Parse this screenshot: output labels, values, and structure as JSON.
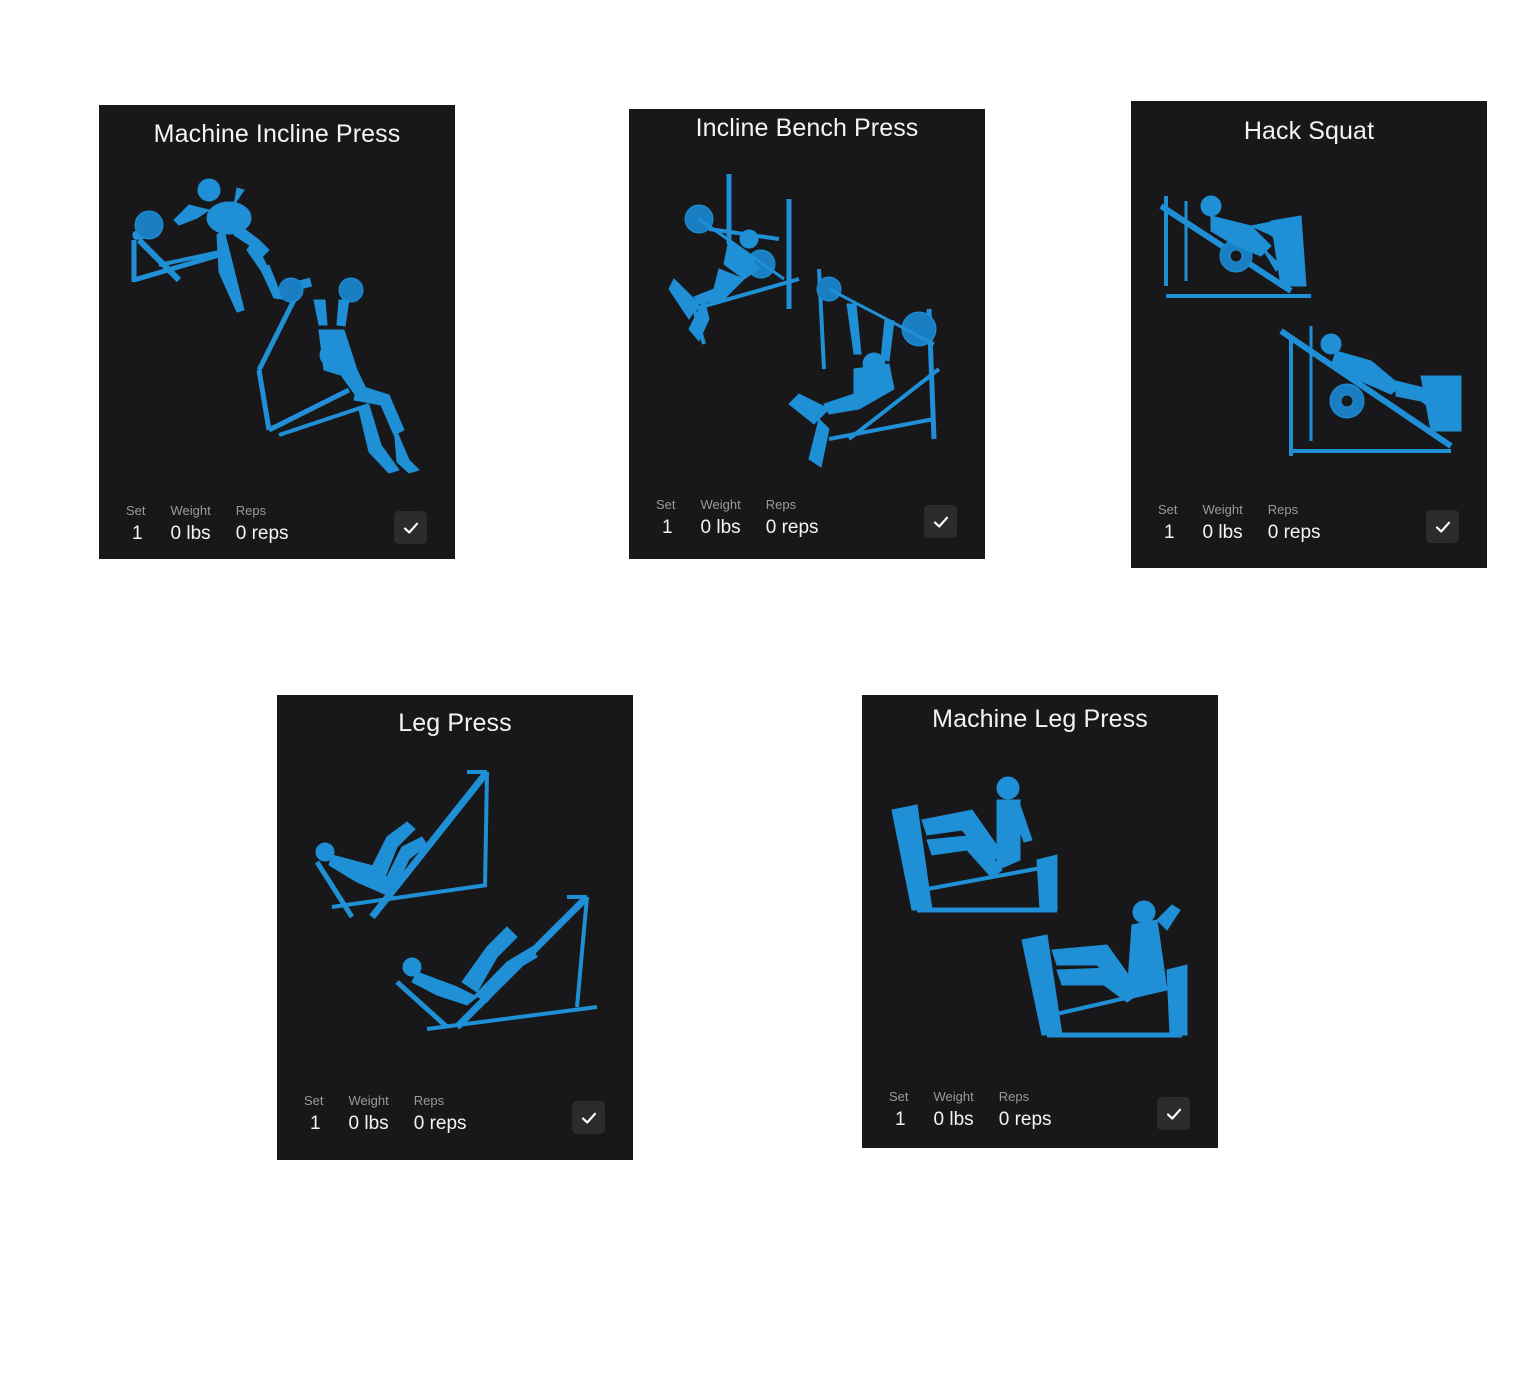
{
  "colors": {
    "card_background": "#18181a",
    "illustration": "#1f8fd6",
    "check_button": "#2c2c2f"
  },
  "labels": {
    "set": "Set",
    "weight": "Weight",
    "reps": "Reps"
  },
  "exercises": [
    {
      "title": "Machine Incline Press",
      "set": "1",
      "weight": "0 lbs",
      "reps": "0 reps",
      "icon": "check-icon"
    },
    {
      "title": "Incline Bench Press",
      "set": "1",
      "weight": "0 lbs",
      "reps": "0 reps",
      "icon": "check-icon"
    },
    {
      "title": "Hack Squat",
      "set": "1",
      "weight": "0 lbs",
      "reps": "0 reps",
      "icon": "check-icon"
    },
    {
      "title": "Leg Press",
      "set": "1",
      "weight": "0 lbs",
      "reps": "0 reps",
      "icon": "check-icon"
    },
    {
      "title": "Machine Leg Press",
      "set": "1",
      "weight": "0 lbs",
      "reps": "0 reps",
      "icon": "check-icon"
    }
  ]
}
